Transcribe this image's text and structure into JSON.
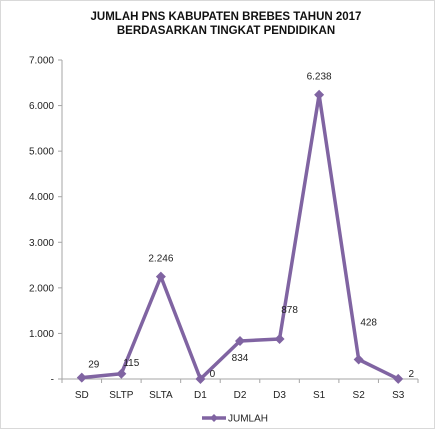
{
  "chart_data": {
    "type": "line",
    "title_lines": [
      "JUMLAH PNS KABUPATEN BREBES TAHUN 2017",
      "BERDASARKAN TINGKAT PENDIDIKAN"
    ],
    "categories": [
      "SD",
      "SLTP",
      "SLTA",
      "D1",
      "D2",
      "D3",
      "S1",
      "S2",
      "S3"
    ],
    "series": [
      {
        "name": "JUMLAH",
        "values": [
          29,
          115,
          2246,
          0,
          834,
          878,
          6238,
          428,
          2
        ],
        "labels": [
          "29",
          "115",
          "2.246",
          "0",
          "834",
          "878",
          "6.238",
          "428",
          "2"
        ],
        "color": "#8064A2"
      }
    ],
    "ylim": [
      0,
      7000
    ],
    "yticks": [
      {
        "value": 0,
        "label": "-"
      },
      {
        "value": 1000,
        "label": "1.000"
      },
      {
        "value": 2000,
        "label": "2.000"
      },
      {
        "value": 3000,
        "label": "3.000"
      },
      {
        "value": 4000,
        "label": "4.000"
      },
      {
        "value": 5000,
        "label": "5.000"
      },
      {
        "value": 6000,
        "label": "6.000"
      },
      {
        "value": 7000,
        "label": "7.000"
      }
    ],
    "grid": false,
    "legend_position": "bottom"
  }
}
